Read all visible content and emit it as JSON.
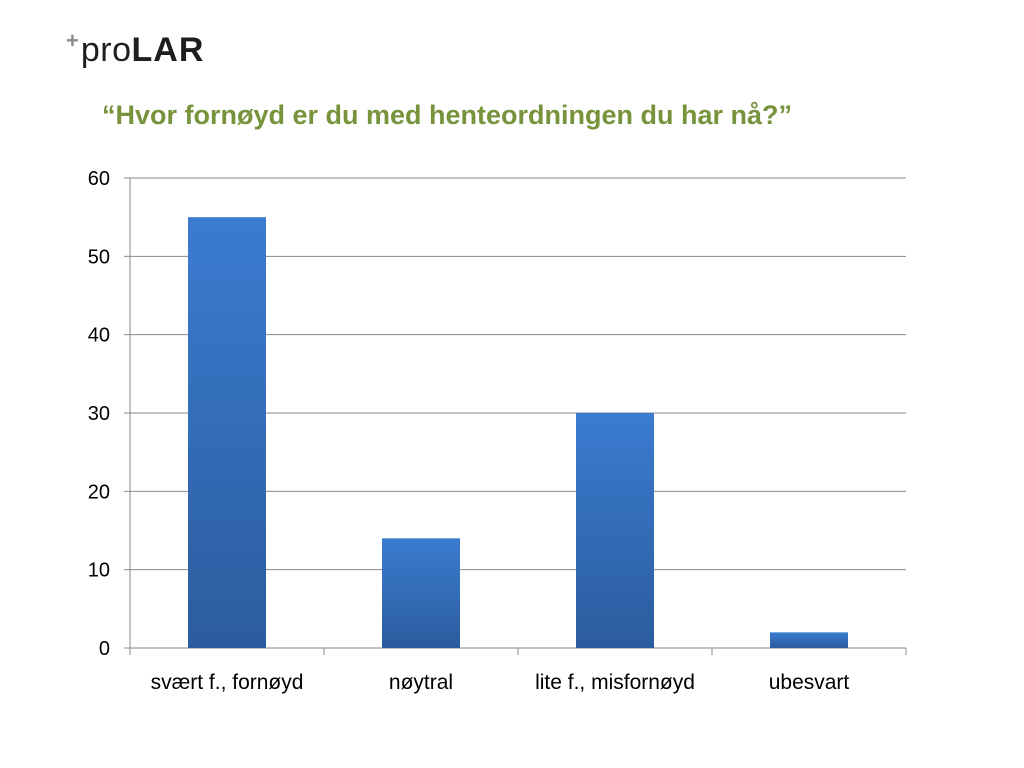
{
  "logo": {
    "plus": "+",
    "pro": "pro",
    "lar": "LAR"
  },
  "chart_data": {
    "type": "bar",
    "title": "“Hvor fornøyd er du med henteordningen du har nå?”",
    "categories": [
      "svært f., fornøyd",
      "nøytral",
      "lite f., misfornøyd",
      "ubesvart"
    ],
    "values": [
      55,
      14,
      30,
      2
    ],
    "ylim": [
      0,
      60
    ],
    "yticks": [
      0,
      10,
      20,
      30,
      40,
      50,
      60
    ],
    "xlabel": "",
    "ylabel": "",
    "grid": true,
    "bar_color_top": "#3b7cd0",
    "bar_color_bottom": "#2b5c9e"
  }
}
